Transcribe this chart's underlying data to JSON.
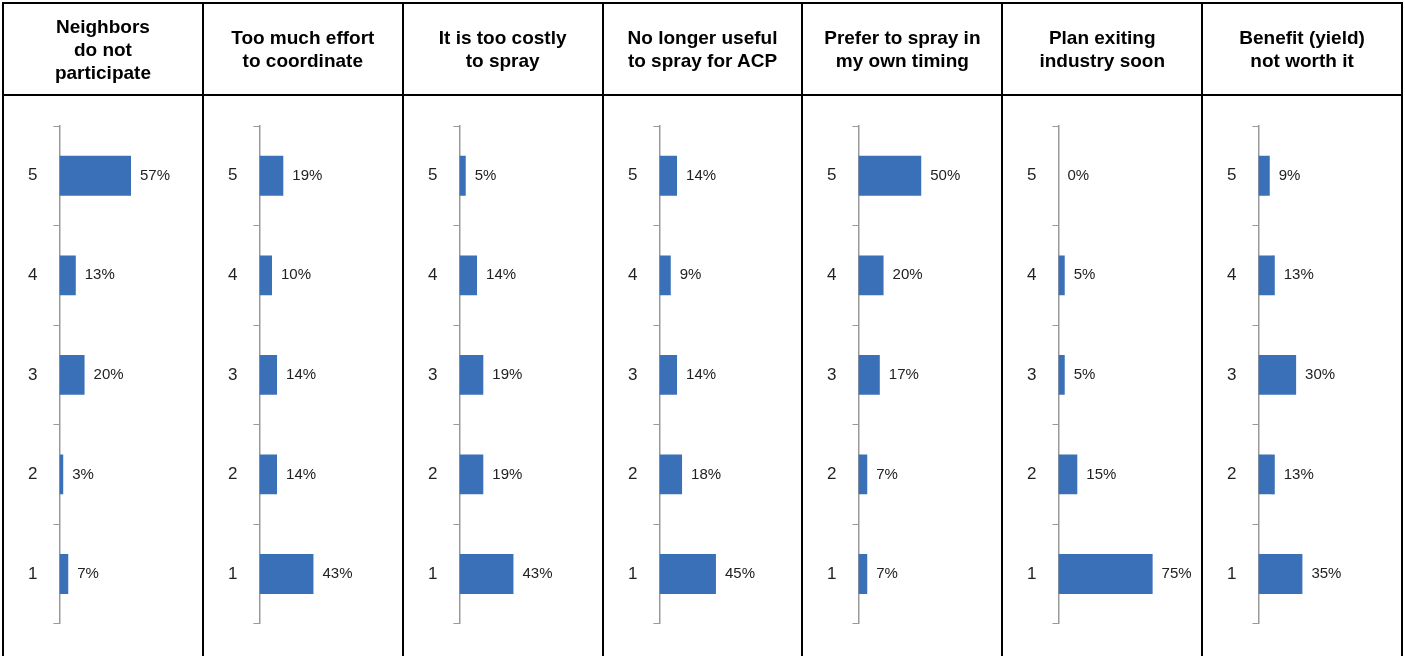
{
  "chart_data": [
    {
      "type": "bar",
      "orientation": "horizontal",
      "title": "Neighbors\ndo not\nparticipate",
      "categories": [
        "5",
        "4",
        "3",
        "2",
        "1"
      ],
      "values": [
        57,
        13,
        20,
        3,
        7
      ],
      "value_labels": [
        "57%",
        "13%",
        "20%",
        "3%",
        "7%"
      ],
      "color": "#3a70b8",
      "tick_labels": "y"
    },
    {
      "type": "bar",
      "orientation": "horizontal",
      "title": "Too much effort\nto coordinate",
      "categories": [
        "5",
        "4",
        "3",
        "2",
        "1"
      ],
      "values": [
        19,
        10,
        14,
        14,
        43
      ],
      "value_labels": [
        "19%",
        "10%",
        "14%",
        "14%",
        "43%"
      ],
      "color": "#3a70b8",
      "tick_labels": "y"
    },
    {
      "type": "bar",
      "orientation": "horizontal",
      "title": "It is too costly\nto spray",
      "categories": [
        "5",
        "4",
        "3",
        "2",
        "1"
      ],
      "values": [
        5,
        14,
        19,
        19,
        43
      ],
      "value_labels": [
        "5%",
        "14%",
        "19%",
        "19%",
        "43%"
      ],
      "color": "#3a70b8",
      "tick_labels": "y"
    },
    {
      "type": "bar",
      "orientation": "horizontal",
      "title": "No longer useful\nto spray for ACP",
      "categories": [
        "5",
        "4",
        "3",
        "2",
        "1"
      ],
      "values": [
        14,
        9,
        14,
        18,
        45
      ],
      "value_labels": [
        "14%",
        "9%",
        "14%",
        "18%",
        "45%"
      ],
      "color": "#3a70b8",
      "tick_labels": "y"
    },
    {
      "type": "bar",
      "orientation": "horizontal",
      "title": "Prefer to spray in\nmy own timing",
      "categories": [
        "5",
        "4",
        "3",
        "2",
        "1"
      ],
      "values": [
        50,
        20,
        17,
        7,
        7
      ],
      "value_labels": [
        "50%",
        "20%",
        "17%",
        "7%",
        "7%"
      ],
      "color": "#3a70b8",
      "tick_labels": "y"
    },
    {
      "type": "bar",
      "orientation": "horizontal",
      "title": "Plan exiting\nindustry soon",
      "categories": [
        "5",
        "4",
        "3",
        "2",
        "1"
      ],
      "values": [
        0,
        5,
        5,
        15,
        75
      ],
      "value_labels": [
        "0%",
        "5%",
        "5%",
        "15%",
        "75%"
      ],
      "color": "#3a70b8",
      "tick_labels": "y"
    },
    {
      "type": "bar",
      "orientation": "horizontal",
      "title": "Benefit (yield)\nnot worth it",
      "categories": [
        "5",
        "4",
        "3",
        "2",
        "1"
      ],
      "values": [
        9,
        13,
        30,
        13,
        35
      ],
      "value_labels": [
        "9%",
        "13%",
        "30%",
        "13%",
        "35%"
      ],
      "color": "#3a70b8",
      "tick_labels": "y"
    }
  ]
}
